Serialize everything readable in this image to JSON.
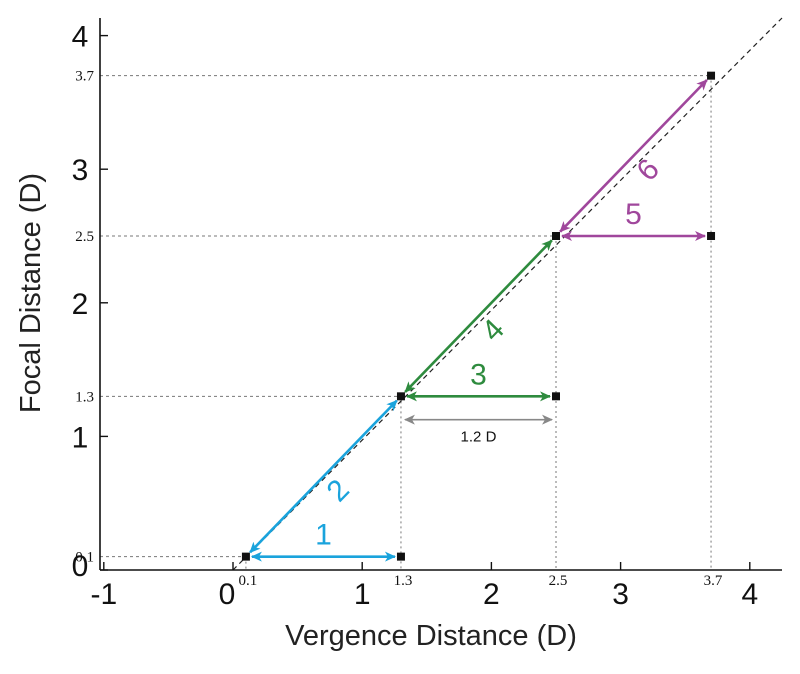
{
  "chart_data": {
    "type": "scatter",
    "title": "",
    "xlabel": "Vergence Distance (D)",
    "ylabel": "Focal Distance (D)",
    "xlim": [
      -1,
      4.2
    ],
    "ylim": [
      0,
      4.2
    ],
    "grid": false,
    "x_ticks_major": [
      "-1",
      "0",
      "1",
      "2",
      "3",
      "4"
    ],
    "y_ticks_major": [
      "0",
      "1",
      "2",
      "3",
      "4"
    ],
    "x_ticks_minor": [
      "0.1",
      "1.3",
      "2.5",
      "3.7"
    ],
    "y_ticks_minor": [
      "0.1",
      "1.3",
      "2.5",
      "3.7"
    ],
    "diagonal": "y = x (dashed)",
    "points": [
      {
        "x": 0.1,
        "y": 0.1
      },
      {
        "x": 1.3,
        "y": 0.1
      },
      {
        "x": 1.3,
        "y": 1.3
      },
      {
        "x": 2.5,
        "y": 1.3
      },
      {
        "x": 2.5,
        "y": 2.5
      },
      {
        "x": 3.7,
        "y": 2.5
      },
      {
        "x": 3.7,
        "y": 3.7
      }
    ],
    "steps": [
      {
        "label": "1",
        "from": [
          1.3,
          0.1
        ],
        "to": [
          0.1,
          0.1
        ],
        "color": "#1aa3dc",
        "double_headed": true
      },
      {
        "label": "2",
        "from": [
          0.1,
          0.1
        ],
        "to": [
          1.3,
          1.3
        ],
        "color": "#1aa3dc",
        "double_headed": true
      },
      {
        "label": "3",
        "from": [
          1.3,
          1.3
        ],
        "to": [
          2.5,
          1.3
        ],
        "color": "#2e8b3e",
        "double_headed": true
      },
      {
        "label": "4",
        "from": [
          1.3,
          1.3
        ],
        "to": [
          2.5,
          2.5
        ],
        "color": "#2e8b3e",
        "double_headed": true
      },
      {
        "label": "5",
        "from": [
          2.5,
          2.5
        ],
        "to": [
          3.7,
          2.5
        ],
        "color": "#a0479c",
        "double_headed": true
      },
      {
        "label": "6",
        "from": [
          2.5,
          2.5
        ],
        "to": [
          3.7,
          3.7
        ],
        "color": "#a0479c",
        "double_headed": true
      }
    ],
    "gap_annotation": {
      "label": "1.2 D",
      "from": 1.3,
      "to": 2.5,
      "y": 1.2,
      "color": "#888888"
    }
  }
}
